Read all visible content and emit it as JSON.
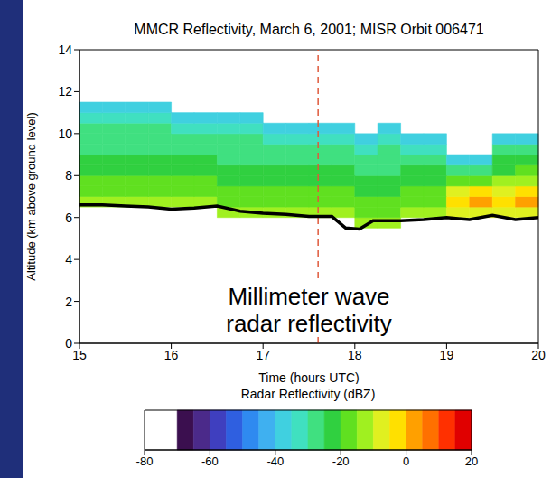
{
  "chart_data": {
    "type": "heatmap",
    "title": "MMCR Reflectivity, March 6, 2001; MISR Orbit 006471",
    "x_label": "Time (hours UTC)",
    "y_label": "Altitude (km above ground level)",
    "annotation": "Millimeter wave radar reflectivity",
    "xlim": [
      15,
      20
    ],
    "xticks": [
      15,
      16,
      17,
      18,
      19,
      20
    ],
    "ylim": [
      0,
      14
    ],
    "yticks": [
      0,
      2,
      4,
      6,
      8,
      10,
      12,
      14
    ],
    "grid": false,
    "heatmap": {
      "x_edges": [
        15,
        15.25,
        15.5,
        15.75,
        16,
        16.25,
        16.5,
        16.75,
        17,
        17.25,
        17.5,
        17.75,
        18,
        18.25,
        18.5,
        18.75,
        19,
        19.25,
        19.5,
        19.75,
        20
      ],
      "y_edges": [
        5.5,
        6,
        6.5,
        7,
        7.5,
        8,
        8.5,
        9,
        9.5,
        10,
        10.5,
        11,
        11.5
      ],
      "z": [
        [
          null,
          null,
          null,
          null,
          null,
          null,
          null,
          null,
          null,
          null,
          null,
          null,
          -15,
          -15,
          null,
          null,
          null,
          null,
          null,
          null
        ],
        [
          null,
          null,
          null,
          null,
          null,
          null,
          -15,
          -15,
          -15,
          -15,
          -15,
          -15,
          -18,
          -18,
          -15,
          -15,
          -10,
          -10,
          -10,
          -10
        ],
        [
          -15,
          -15,
          -15,
          -15,
          -15,
          -15,
          -18,
          -18,
          -18,
          -18,
          -18,
          -18,
          -20,
          -20,
          -18,
          -18,
          -3,
          2,
          -5,
          4
        ],
        [
          -18,
          -18,
          -18,
          -18,
          -18,
          -18,
          -20,
          -20,
          -20,
          -20,
          -20,
          -20,
          -22,
          -22,
          -20,
          -20,
          -8,
          -4,
          -6,
          -2
        ],
        [
          -20,
          -20,
          -20,
          -20,
          -20,
          -20,
          -22,
          -22,
          -22,
          -22,
          -22,
          -22,
          -24,
          -24,
          -22,
          -22,
          -16,
          -18,
          -14,
          -12
        ],
        [
          -22,
          -22,
          -22,
          -22,
          -22,
          -22,
          -24,
          -24,
          -24,
          -24,
          -24,
          -24,
          -26,
          -26,
          -24,
          -24,
          -26,
          -28,
          -22,
          -20
        ],
        [
          -24,
          -24,
          -24,
          -24,
          -24,
          -24,
          -26,
          -26,
          -26,
          -26,
          -26,
          -26,
          -28,
          -28,
          -26,
          -26,
          -36,
          -38,
          -24,
          -22
        ],
        [
          -26,
          -26,
          -26,
          -26,
          -26,
          -26,
          -28,
          -28,
          -28,
          -28,
          -28,
          -28,
          -32,
          -28,
          -32,
          -32,
          null,
          null,
          -30,
          -28
        ],
        [
          -28,
          -28,
          -28,
          -28,
          -28,
          -28,
          -28,
          -28,
          -32,
          -32,
          -32,
          -32,
          -38,
          -32,
          -38,
          -38,
          null,
          null,
          -38,
          -38
        ],
        [
          -28,
          -28,
          -28,
          -28,
          -32,
          -32,
          -32,
          -32,
          -38,
          -38,
          -38,
          -38,
          null,
          -38,
          null,
          null,
          null,
          null,
          null,
          null
        ],
        [
          -32,
          -32,
          -32,
          -32,
          -38,
          -38,
          -38,
          -38,
          null,
          null,
          null,
          null,
          null,
          null,
          null,
          null,
          null,
          null,
          null,
          null
        ],
        [
          -38,
          -38,
          -40,
          -40,
          null,
          null,
          null,
          null,
          null,
          null,
          null,
          null,
          null,
          null,
          null,
          null,
          null,
          null,
          null,
          null
        ]
      ]
    },
    "cloud_base": {
      "color": "#000000",
      "x": [
        15,
        15.25,
        15.5,
        15.75,
        16,
        16.25,
        16.5,
        16.75,
        17,
        17.25,
        17.5,
        17.75,
        17.9,
        18.05,
        18.2,
        18.5,
        18.75,
        19,
        19.25,
        19.5,
        19.75,
        20
      ],
      "values": [
        6.6,
        6.6,
        6.55,
        6.5,
        6.4,
        6.45,
        6.55,
        6.3,
        6.2,
        6.15,
        6.05,
        6.05,
        5.5,
        5.45,
        5.85,
        5.85,
        5.9,
        6.0,
        5.9,
        6.1,
        5.9,
        6.0
      ]
    },
    "reference_line": {
      "x": 17.6,
      "color": "#e05a3c",
      "line_style": "dashed"
    },
    "colorbar": {
      "title": "Radar Reflectivity (dBZ)",
      "range": [
        -80,
        20
      ],
      "ticks": [
        -80,
        -60,
        -40,
        -20,
        0,
        20
      ],
      "colors": [
        "#ffffff",
        "#ffffff",
        "#3b0f4f",
        "#4b2a8a",
        "#3f3fbf",
        "#2f5fe0",
        "#2f8af0",
        "#3fb0f0",
        "#40d0e0",
        "#40e0c0",
        "#40e080",
        "#30d040",
        "#60e020",
        "#a0f020",
        "#e0f020",
        "#ffe000",
        "#ffa000",
        "#ff7000",
        "#ff3000",
        "#e00000"
      ]
    }
  }
}
